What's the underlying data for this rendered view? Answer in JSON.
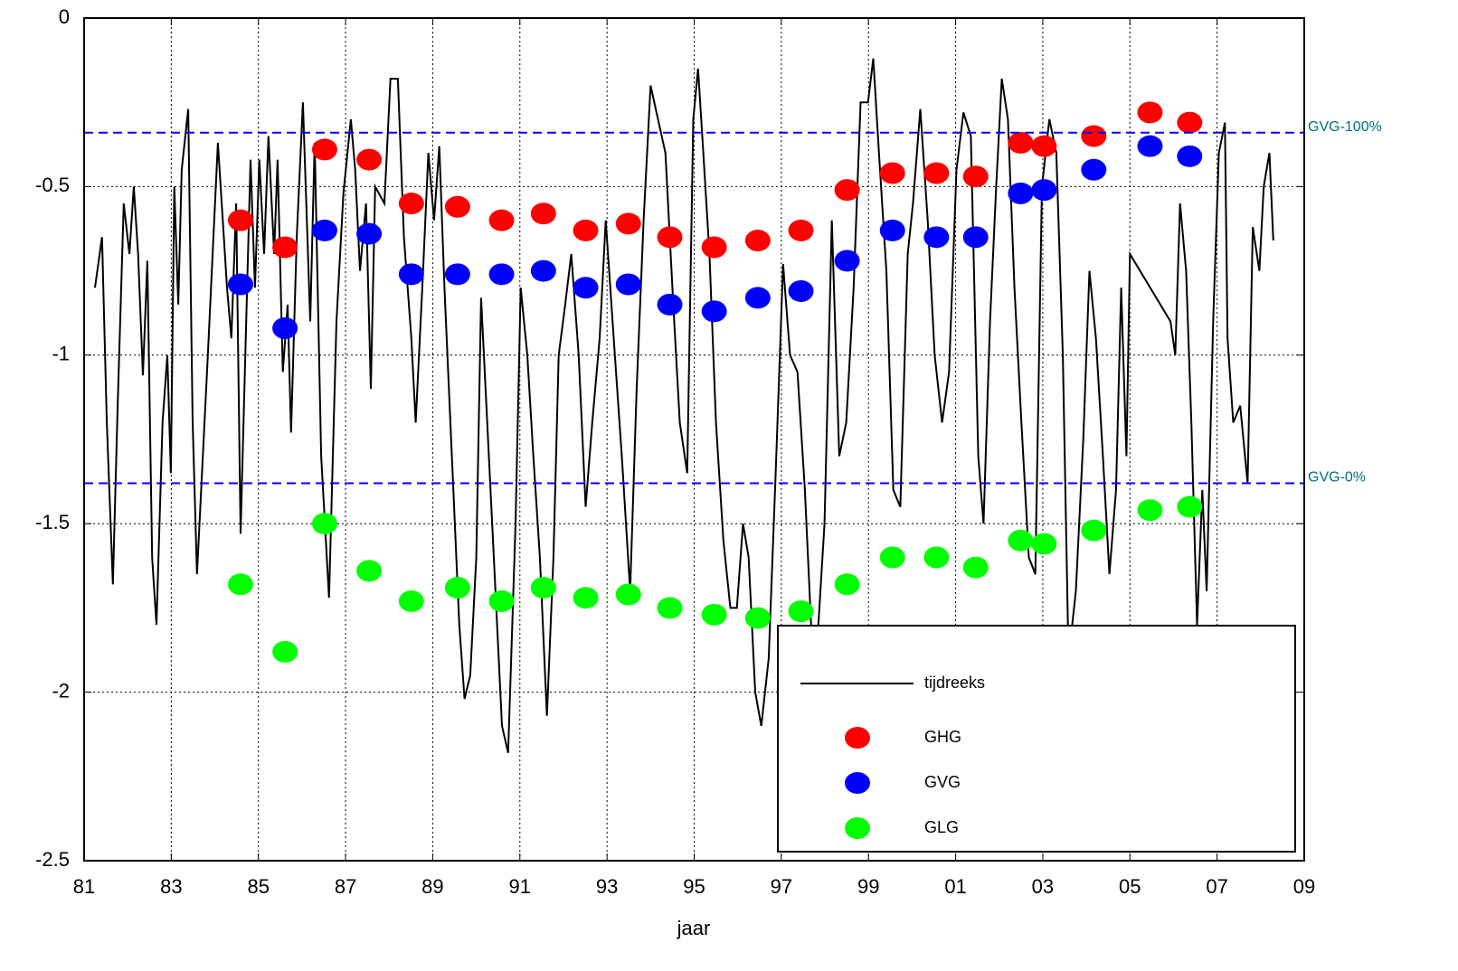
{
  "chart_data": {
    "type": "line",
    "xlabel": "jaar",
    "xlim": [
      1981,
      2009
    ],
    "xticks": [
      {
        "value": 1981,
        "label": "81"
      },
      {
        "value": 1983,
        "label": "83"
      },
      {
        "value": 1985,
        "label": "85"
      },
      {
        "value": 1987,
        "label": "87"
      },
      {
        "value": 1989,
        "label": "89"
      },
      {
        "value": 1991,
        "label": "91"
      },
      {
        "value": 1993,
        "label": "93"
      },
      {
        "value": 1995,
        "label": "95"
      },
      {
        "value": 1997,
        "label": "97"
      },
      {
        "value": 1999,
        "label": "99"
      },
      {
        "value": 2001,
        "label": "01"
      },
      {
        "value": 2003,
        "label": "03"
      },
      {
        "value": 2005,
        "label": "05"
      },
      {
        "value": 2007,
        "label": "07"
      },
      {
        "value": 2009,
        "label": "09"
      }
    ],
    "ylim": [
      -2.5,
      0
    ],
    "yticks": [
      0,
      -0.5,
      -1,
      -1.5,
      -2,
      -2.5
    ],
    "grid": true,
    "legend": "lower right",
    "hlines": [
      {
        "value": -0.34,
        "label": "GVG-100%",
        "color": "#0000ff"
      },
      {
        "value": -1.38,
        "label": "GVG-0%",
        "color": "#0000ff"
      }
    ],
    "series": [
      {
        "name": "tijdreeks",
        "kind": "line",
        "color": "#000000",
        "x": [
          1981.25,
          1981.41,
          1981.52,
          1981.66,
          1981.77,
          1981.91,
          1982.04,
          1982.14,
          1982.24,
          1982.35,
          1982.45,
          1982.56,
          1982.66,
          1982.8,
          1982.91,
          1982.99,
          1983.07,
          1983.16,
          1983.24,
          1983.39,
          1983.49,
          1983.59,
          1983.84,
          1984.07,
          1984.28,
          1984.38,
          1984.49,
          1984.59,
          1984.71,
          1984.82,
          1984.92,
          1985.02,
          1985.13,
          1985.23,
          1985.36,
          1985.44,
          1985.56,
          1985.67,
          1985.75,
          1985.88,
          1986.02,
          1986.19,
          1986.29,
          1986.44,
          1986.62,
          1986.79,
          1986.95,
          1987.12,
          1987.22,
          1987.33,
          1987.47,
          1987.58,
          1987.68,
          1987.89,
          1988.03,
          1988.2,
          1988.34,
          1988.51,
          1988.61,
          1988.76,
          1988.9,
          1989.03,
          1989.15,
          1989.27,
          1989.44,
          1989.61,
          1989.73,
          1989.86,
          1990.0,
          1990.11,
          1990.27,
          1990.44,
          1990.59,
          1990.73,
          1990.9,
          1991.02,
          1991.17,
          1991.31,
          1991.46,
          1991.62,
          1991.77,
          1991.89,
          1992.04,
          1992.18,
          1992.35,
          1992.51,
          1992.66,
          1992.83,
          1992.97,
          1993.18,
          1993.34,
          1993.53,
          1993.68,
          1993.84,
          1994.0,
          1994.17,
          1994.34,
          1994.52,
          1994.67,
          1994.84,
          1994.98,
          1995.09,
          1995.21,
          1995.35,
          1995.5,
          1995.67,
          1995.83,
          1995.98,
          1996.12,
          1996.25,
          1996.4,
          1996.54,
          1996.71,
          1996.87,
          1997.04,
          1997.2,
          1997.37,
          1997.54,
          1997.7,
          1997.85,
          1997.99,
          1998.16,
          1998.33,
          1998.49,
          1998.66,
          1998.82,
          1998.99,
          1999.11,
          1999.24,
          1999.41,
          1999.57,
          1999.73,
          1999.9,
          2000.02,
          2000.19,
          2000.36,
          2000.52,
          2000.69,
          2000.85,
          2001.02,
          2001.18,
          2001.35,
          2001.52,
          2001.64,
          2001.79,
          2001.93,
          2002.06,
          2002.2,
          2002.35,
          2002.51,
          2002.68,
          2002.83,
          2002.98,
          2003.15,
          2003.31,
          2003.46,
          2003.59,
          2003.76,
          2003.93,
          2004.07,
          2004.22,
          2004.38,
          2004.53,
          2004.68,
          2004.8,
          2004.92,
          2005.0,
          2005.93,
          2006.04,
          2006.15,
          2006.29,
          2006.41,
          2006.54,
          2006.66,
          2006.76,
          2006.91,
          2007.04,
          2007.18,
          2007.24,
          2007.37,
          2007.53,
          2007.7,
          2007.82,
          2007.97,
          2008.07,
          2008.2,
          2008.29
        ],
        "values": [
          -0.8,
          -0.65,
          -1.2,
          -1.68,
          -1.15,
          -0.55,
          -0.7,
          -0.5,
          -0.7,
          -1.06,
          -0.72,
          -1.6,
          -1.8,
          -1.2,
          -1.0,
          -1.35,
          -0.5,
          -0.85,
          -0.45,
          -0.27,
          -1.2,
          -1.65,
          -1.0,
          -0.37,
          -0.8,
          -0.95,
          -0.55,
          -1.53,
          -0.95,
          -0.42,
          -0.8,
          -0.42,
          -0.7,
          -0.35,
          -0.7,
          -0.42,
          -1.05,
          -0.85,
          -1.23,
          -0.65,
          -0.25,
          -0.9,
          -0.37,
          -1.3,
          -1.72,
          -0.9,
          -0.52,
          -0.3,
          -0.45,
          -0.75,
          -0.55,
          -1.1,
          -0.5,
          -0.55,
          -0.18,
          -0.18,
          -0.65,
          -0.95,
          -1.2,
          -0.8,
          -0.4,
          -0.6,
          -0.38,
          -0.8,
          -1.3,
          -1.8,
          -2.02,
          -1.95,
          -1.6,
          -0.83,
          -1.25,
          -1.7,
          -2.1,
          -2.18,
          -1.5,
          -0.8,
          -1.0,
          -1.3,
          -1.6,
          -2.07,
          -1.6,
          -1.0,
          -0.85,
          -0.7,
          -1.0,
          -1.45,
          -1.2,
          -0.95,
          -0.6,
          -1.0,
          -1.3,
          -1.7,
          -1.1,
          -0.6,
          -0.2,
          -0.3,
          -0.4,
          -0.85,
          -1.2,
          -1.35,
          -0.3,
          -0.15,
          -0.4,
          -0.7,
          -1.2,
          -1.55,
          -1.75,
          -1.75,
          -1.5,
          -1.6,
          -2.0,
          -2.1,
          -1.9,
          -1.35,
          -0.73,
          -1.0,
          -1.05,
          -1.4,
          -1.85,
          -1.8,
          -1.5,
          -0.6,
          -1.3,
          -1.2,
          -0.8,
          -0.25,
          -0.25,
          -0.12,
          -0.4,
          -0.75,
          -1.4,
          -1.45,
          -0.7,
          -0.55,
          -0.27,
          -0.6,
          -1.0,
          -1.2,
          -1.05,
          -0.45,
          -0.28,
          -0.35,
          -1.3,
          -1.5,
          -0.9,
          -0.5,
          -0.18,
          -0.3,
          -0.8,
          -1.2,
          -1.6,
          -1.65,
          -0.5,
          -0.3,
          -0.4,
          -1.0,
          -1.9,
          -1.7,
          -1.25,
          -0.75,
          -0.95,
          -1.3,
          -1.65,
          -1.4,
          -0.8,
          -1.3,
          -0.7,
          -0.9,
          -1.0,
          -0.55,
          -0.75,
          -1.2,
          -1.8,
          -1.4,
          -1.7,
          -0.9,
          -0.4,
          -0.31,
          -0.95,
          -1.2,
          -1.15,
          -1.38,
          -0.62,
          -0.75,
          -0.5,
          -0.4,
          -0.66
        ]
      },
      {
        "name": "GHG",
        "kind": "scatter",
        "color": "#ff0000",
        "x": [
          1984.59,
          1985.61,
          1986.52,
          1987.54,
          1988.51,
          1989.57,
          1990.58,
          1991.54,
          1992.51,
          1993.49,
          1994.44,
          1995.46,
          1996.46,
          1997.45,
          1998.51,
          1999.55,
          2000.56,
          2001.46,
          2002.49,
          2003.03,
          2004.17,
          2005.46,
          2006.37
        ],
        "values": [
          -0.6,
          -0.68,
          -0.39,
          -0.42,
          -0.55,
          -0.56,
          -0.6,
          -0.58,
          -0.63,
          -0.61,
          -0.65,
          -0.68,
          -0.66,
          -0.63,
          -0.51,
          -0.46,
          -0.46,
          -0.47,
          -0.37,
          -0.38,
          -0.35,
          -0.28,
          -0.31
        ]
      },
      {
        "name": "GVG",
        "kind": "scatter",
        "color": "#0000ff",
        "x": [
          1984.59,
          1985.61,
          1986.52,
          1987.54,
          1988.51,
          1989.57,
          1990.58,
          1991.54,
          1992.51,
          1993.49,
          1994.44,
          1995.46,
          1996.46,
          1997.45,
          1998.51,
          1999.55,
          2000.56,
          2001.46,
          2002.49,
          2003.03,
          2004.17,
          2005.46,
          2006.37
        ],
        "values": [
          -0.79,
          -0.92,
          -0.63,
          -0.64,
          -0.76,
          -0.76,
          -0.76,
          -0.75,
          -0.8,
          -0.79,
          -0.85,
          -0.87,
          -0.83,
          -0.81,
          -0.72,
          -0.63,
          -0.65,
          -0.65,
          -0.52,
          -0.51,
          -0.45,
          -0.38,
          -0.41
        ]
      },
      {
        "name": "GLG",
        "kind": "scatter",
        "color": "#00ff00",
        "x": [
          1984.59,
          1985.61,
          1986.52,
          1987.54,
          1988.51,
          1989.57,
          1990.58,
          1991.54,
          1992.51,
          1993.49,
          1994.44,
          1995.46,
          1996.46,
          1997.45,
          1998.51,
          1999.55,
          2000.56,
          2001.46,
          2002.49,
          2003.03,
          2004.17,
          2005.46,
          2006.37
        ],
        "values": [
          -1.68,
          -1.88,
          -1.5,
          -1.64,
          -1.73,
          -1.69,
          -1.73,
          -1.69,
          -1.72,
          -1.71,
          -1.75,
          -1.77,
          -1.78,
          -1.76,
          -1.68,
          -1.6,
          -1.6,
          -1.63,
          -1.55,
          -1.56,
          -1.52,
          -1.46,
          -1.45
        ]
      }
    ]
  }
}
